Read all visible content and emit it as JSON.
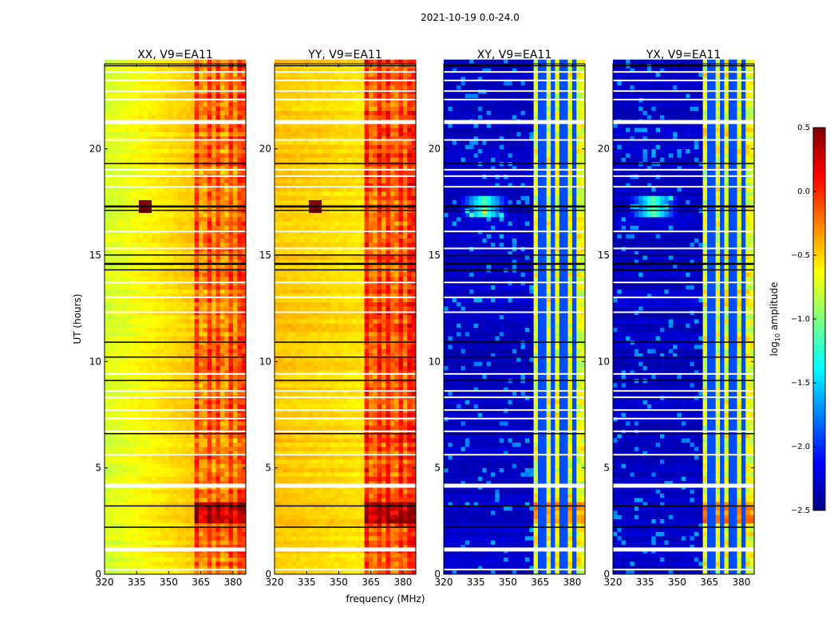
{
  "chart_data": {
    "type": "heatmap",
    "suptitle": "2021-10-19 0.0-24.0",
    "xlabel": "frequency (MHz)",
    "ylabel": "UT (hours)",
    "xlim": [
      320,
      386
    ],
    "ylim": [
      0,
      24
    ],
    "xticks": [
      "320",
      "335",
      "350",
      "365",
      "380"
    ],
    "xtick_values": [
      320,
      335,
      350,
      365,
      380
    ],
    "yticks": [
      "0",
      "5",
      "10",
      "15",
      "20"
    ],
    "ytick_values": [
      0,
      5,
      10,
      15,
      20
    ],
    "colormap": "jet",
    "colorbar": {
      "label_main": "log",
      "label_sub": "10",
      "label_rest": " amplitude",
      "range": [
        -2.5,
        0.5
      ],
      "ticks": [
        "0.5",
        "0.0",
        "−0.5",
        "−1.0",
        "−1.5",
        "−2.0",
        "−2.5"
      ],
      "tick_values": [
        0.5,
        0.0,
        -0.5,
        -1.0,
        -1.5,
        -2.0,
        -2.5
      ]
    },
    "flagged_hours_white": [
      0.2,
      1.2,
      4.2,
      5.6,
      6.7,
      7.3,
      7.7,
      8.3,
      8.6,
      9.4,
      12.3,
      13.0,
      13.7,
      15.3,
      16.1,
      18.2,
      18.7,
      19.0,
      20.4,
      21.3,
      22.3,
      22.7,
      23.2,
      23.6
    ],
    "flagged_hours_black": [
      2.2,
      3.2,
      6.6,
      9.1,
      10.2,
      10.9,
      14.3,
      14.6,
      15.0,
      17.1,
      17.3,
      19.3,
      23.9
    ],
    "rfi_hour": 17.2,
    "rfi_freq": 338,
    "band_edge_mhz": 362,
    "band_gaps_mhz": [
      366,
      371,
      376,
      381
    ],
    "panels": [
      {
        "title": "XX, V9=EA11",
        "low_band_level": -0.75,
        "high_band_level": -0.05,
        "low_band_slope": 0.3
      },
      {
        "title": "YY, V9=EA11",
        "low_band_level": -0.45,
        "high_band_level": 0.05,
        "low_band_slope": -0.1
      },
      {
        "title": "XY, V9=EA11",
        "low_band_level": -2.3,
        "high_band_level": -0.7,
        "low_band_slope": 0.0
      },
      {
        "title": "YX, V9=EA11",
        "low_band_level": -2.3,
        "high_band_level": -0.7,
        "low_band_slope": 0.0
      }
    ]
  }
}
